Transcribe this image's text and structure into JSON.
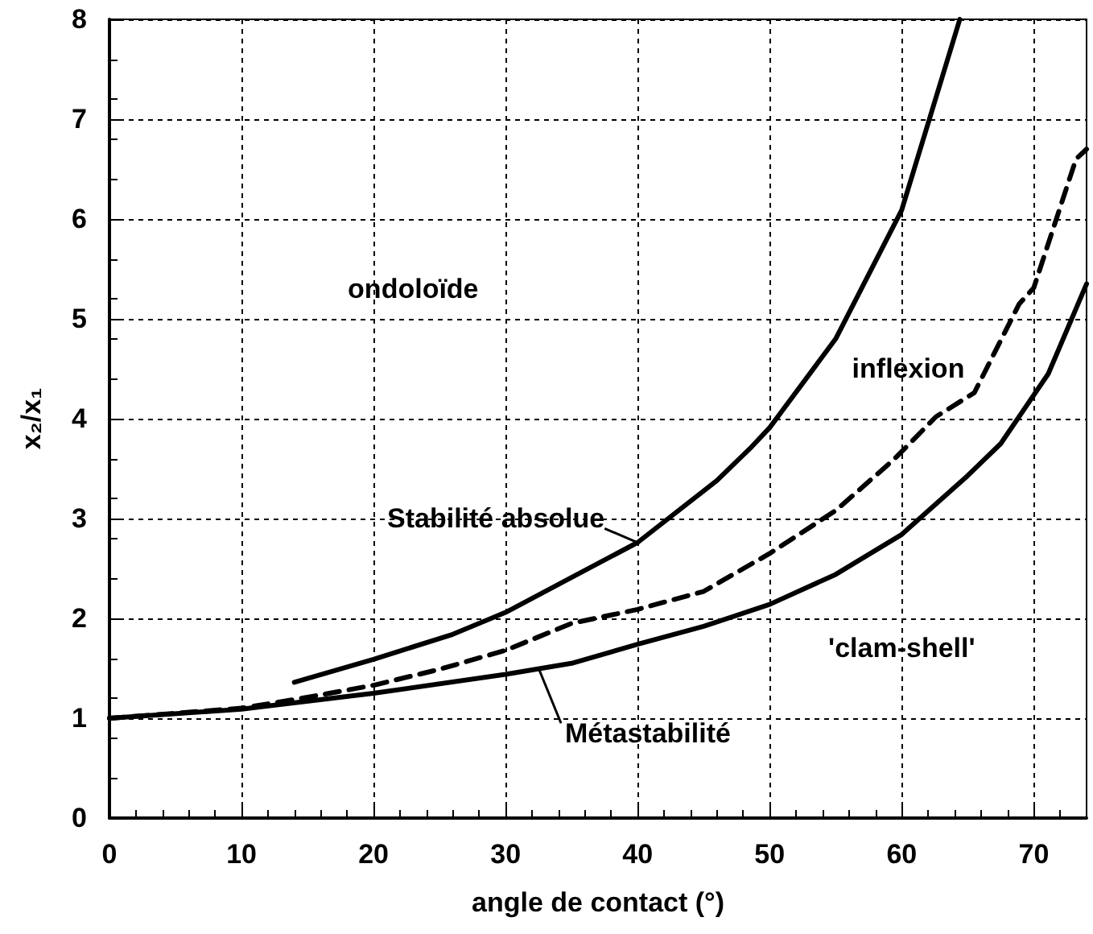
{
  "chart_data": {
    "type": "line",
    "xlabel": "angle de contact (°)",
    "ylabel": "x₂/x₁",
    "xlim": [
      0,
      74
    ],
    "ylim": [
      0,
      8
    ],
    "xticks": [
      0,
      10,
      20,
      30,
      40,
      50,
      60,
      70
    ],
    "yticks": [
      0,
      1,
      2,
      3,
      4,
      5,
      6,
      7,
      8
    ],
    "grid": true,
    "marker": "none",
    "annotations": [
      "ondoloïde",
      "inflexion",
      "'clam-shell'"
    ],
    "series": [
      {
        "name": "Stabilité absolue",
        "color": "#000000",
        "line_style": "solid",
        "x": [
          14,
          20,
          26,
          30,
          35,
          40,
          46,
          48.5,
          50,
          55,
          60,
          64.4
        ],
        "values": [
          1.36,
          1.59,
          1.84,
          2.06,
          2.41,
          2.76,
          3.38,
          3.7,
          3.91,
          4.8,
          6.09,
          8
        ]
      },
      {
        "color": "#000000",
        "line_style": "dashed",
        "x": [
          0,
          5,
          10,
          15,
          20,
          25,
          30,
          35,
          40,
          45,
          50,
          55,
          59.4,
          62.6,
          65.5,
          68.9,
          70,
          73.2,
          74
        ],
        "values": [
          1.0,
          1.05,
          1.1,
          1.21,
          1.33,
          1.49,
          1.68,
          1.95,
          2.09,
          2.27,
          2.65,
          3.08,
          3.59,
          4.02,
          4.26,
          5.15,
          5.31,
          6.6,
          6.7
        ]
      },
      {
        "name": "Métastabilité",
        "color": "#000000",
        "line_style": "solid",
        "x": [
          0,
          10,
          20,
          30,
          35,
          40,
          45,
          50,
          55,
          60,
          65,
          67.5,
          71.1,
          74
        ],
        "values": [
          1.0,
          1.09,
          1.25,
          1.44,
          1.55,
          1.74,
          1.92,
          2.14,
          2.44,
          2.84,
          3.43,
          3.75,
          4.45,
          5.35
        ]
      }
    ]
  }
}
